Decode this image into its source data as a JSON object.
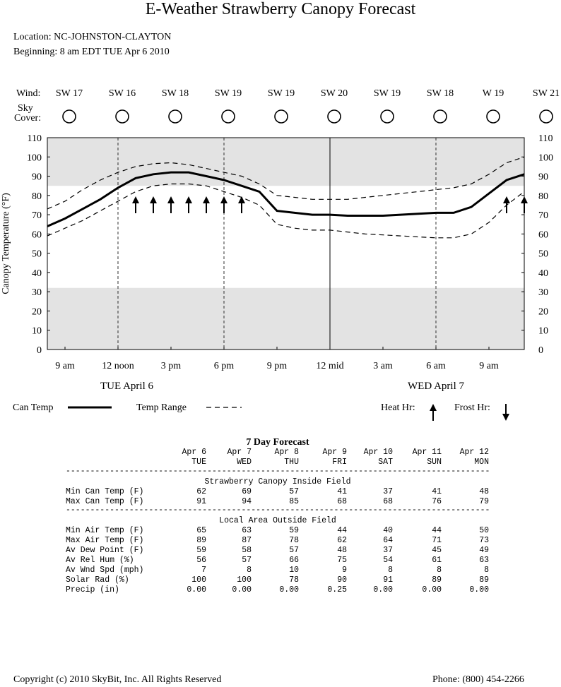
{
  "title": "E-Weather Strawberry Canopy Forecast",
  "location": "Location:  NC-JOHNSTON-CLAYTON",
  "beginning": "Beginning: 8 am EDT TUE Apr 6 2010",
  "wind_label": "Wind:",
  "sky_label_1": "Sky",
  "sky_label_2": "Cover:",
  "wind": [
    "SW 17",
    "SW 16",
    "SW 18",
    "SW 19",
    "SW 19",
    "SW 20",
    "SW 19",
    "SW 18",
    "W  19",
    "SW 21"
  ],
  "sky_icon": "clear-sky-icon",
  "chart_data": {
    "type": "line",
    "title": "E-Weather Strawberry Canopy Forecast",
    "ylabel": "Canopy Temperature (°F)",
    "ylim": [
      0,
      110
    ],
    "yticks": [
      0,
      10,
      20,
      30,
      40,
      50,
      60,
      70,
      80,
      90,
      100,
      110
    ],
    "x_hours": [
      0,
      1,
      2,
      3,
      4,
      5,
      6,
      7,
      8,
      9,
      10,
      11,
      12,
      13,
      14,
      15,
      16,
      17,
      18,
      19,
      20,
      21,
      22,
      23,
      24,
      25,
      26,
      27
    ],
    "xtick_labels": [
      "9 am",
      "12 noon",
      "3 pm",
      "6 pm",
      "9 pm",
      "12 mid",
      "3 am",
      "6 am",
      "9 am"
    ],
    "xtick_hours": [
      1,
      4,
      7,
      10,
      13,
      16,
      19,
      22,
      25
    ],
    "day_labels": [
      {
        "hour": 4.5,
        "text": "TUE April  6"
      },
      {
        "hour": 22,
        "text": "WED April  7"
      }
    ],
    "shaded_bands": [
      {
        "from": 85,
        "to": 110
      },
      {
        "from": 0,
        "to": 32
      }
    ],
    "legend": {
      "can_temp": "Can Temp",
      "temp_range": "Temp Range",
      "heat": "Heat  Hr:",
      "frost": "Frost Hr:"
    },
    "series": [
      {
        "name": "Can Temp",
        "style": "solid",
        "values": [
          64,
          68,
          73,
          78,
          84,
          89,
          91,
          92,
          92,
          90,
          88,
          85,
          82,
          72,
          71,
          70,
          70,
          69.5,
          69.5,
          69.5,
          70,
          70.5,
          71,
          71,
          74,
          81,
          88,
          91
        ]
      },
      {
        "name": "Temp Range upper",
        "style": "dashed",
        "values": [
          73,
          77,
          83,
          88,
          92,
          95,
          96.5,
          97,
          96,
          94,
          92,
          90,
          86,
          80,
          79,
          78,
          78,
          78,
          79,
          80,
          81,
          82,
          83,
          84,
          86,
          91,
          97,
          100
        ]
      },
      {
        "name": "Temp Range lower",
        "style": "dashed",
        "values": [
          59,
          63,
          67,
          72,
          77,
          82,
          85,
          86,
          86,
          85,
          82,
          79,
          75,
          65,
          63,
          62,
          62,
          61,
          60,
          59.5,
          59,
          58.5,
          58,
          58,
          60,
          66,
          75,
          82
        ]
      }
    ],
    "heat_hours": [
      5,
      6,
      7,
      8,
      9,
      10,
      11,
      26,
      27
    ],
    "frost_hours": []
  },
  "forecast": {
    "title": "7 Day Forecast",
    "dates": [
      "Apr  6",
      "Apr  7",
      "Apr  8",
      "Apr  9",
      "Apr 10",
      "Apr 11",
      "Apr 12"
    ],
    "days": [
      "TUE",
      "WED",
      "THU",
      "FRI",
      "SAT",
      "SUN",
      "MON"
    ],
    "separator": "------------------------------------------------------------------------------------------------",
    "section1": "Strawberry Canopy Inside Field",
    "section2": "Local Area Outside Field",
    "rows1": [
      {
        "label": "Min Can Temp (F)",
        "values": [
          "62",
          "69",
          "57",
          "41",
          "37",
          "41",
          "48"
        ]
      },
      {
        "label": "Max Can Temp (F)",
        "values": [
          "91",
          "94",
          "85",
          "68",
          "68",
          "76",
          "79"
        ]
      }
    ],
    "rows2": [
      {
        "label": "Min Air Temp (F)",
        "values": [
          "65",
          "63",
          "59",
          "44",
          "40",
          "44",
          "50"
        ]
      },
      {
        "label": "Max Air Temp (F)",
        "values": [
          "89",
          "87",
          "78",
          "62",
          "64",
          "71",
          "73"
        ]
      },
      {
        "label": "Av Dew Point (F)",
        "values": [
          "59",
          "58",
          "57",
          "48",
          "37",
          "45",
          "49"
        ]
      },
      {
        "label": "Av Rel Hum   (%)",
        "values": [
          "56",
          "57",
          "66",
          "75",
          "54",
          "61",
          "63"
        ]
      },
      {
        "label": "Av Wnd Spd (mph)",
        "values": [
          "7",
          "8",
          "10",
          "9",
          "8",
          "8",
          "8"
        ]
      },
      {
        "label": "Solar Rad    (%)",
        "values": [
          "100",
          "100",
          "78",
          "90",
          "91",
          "89",
          "89"
        ]
      },
      {
        "label": "Precip      (in)",
        "values": [
          "0.00",
          "0.00",
          "0.00",
          "0.25",
          "0.00",
          "0.00",
          "0.00"
        ]
      }
    ]
  },
  "footer": {
    "copyright": "Copyright (c) 2010 SkyBit, Inc. All Rights Reserved",
    "phone": "Phone: (800) 454-2266"
  }
}
